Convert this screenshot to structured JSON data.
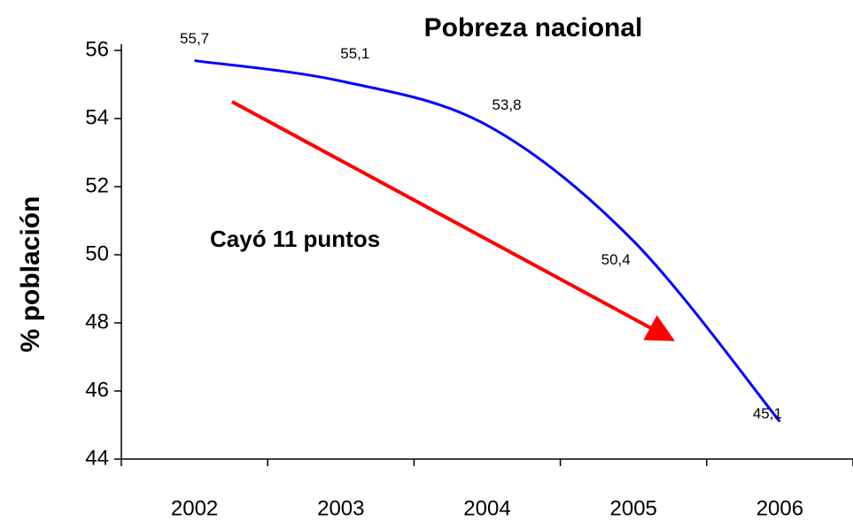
{
  "chart_data": {
    "type": "line",
    "title": "Pobreza nacional",
    "ylabel": "% población",
    "categories": [
      "2002",
      "2003",
      "2004",
      "2005",
      "2006"
    ],
    "values": [
      55.7,
      55.1,
      53.8,
      50.4,
      45.1
    ],
    "value_labels": [
      "55,7",
      "55,1",
      "53,8",
      "50,4",
      "45,1"
    ],
    "color": "#0000ff",
    "ylim": [
      44,
      56
    ],
    "yticks": [
      44,
      46,
      48,
      50,
      52,
      54,
      56
    ],
    "annotations": [
      {
        "text": "Cayó 11 puntos",
        "color": "#ff0000"
      }
    ]
  }
}
